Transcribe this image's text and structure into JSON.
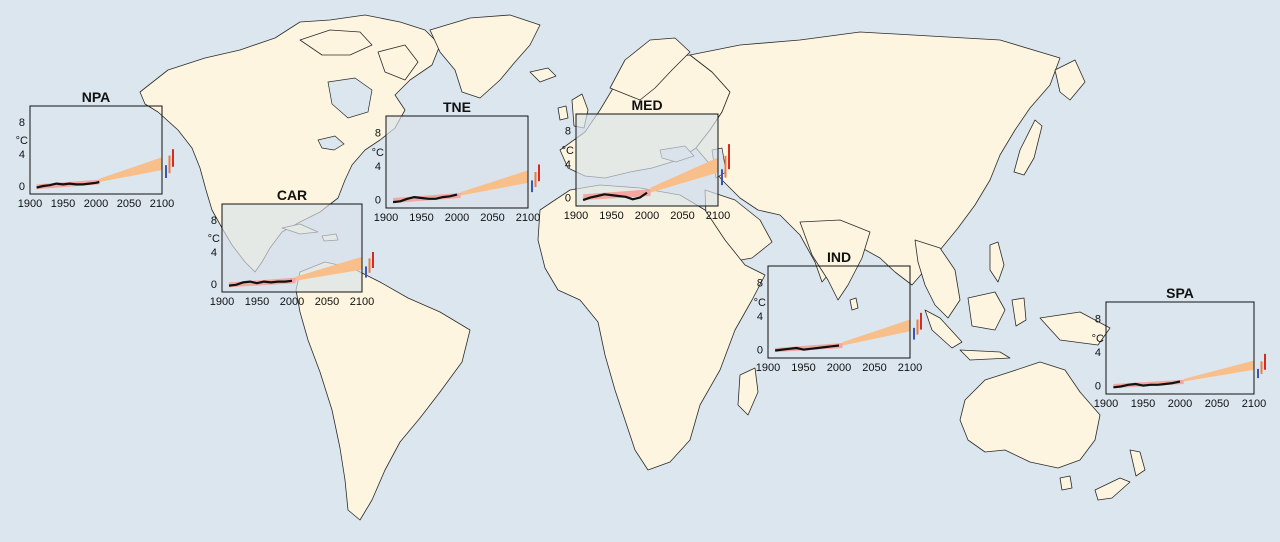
{
  "colors": {
    "ocean": "#dce6ef",
    "land": "#fdf5df",
    "coastline": "#2b2b2b",
    "observed_line": "#111111",
    "historical_model_band": "#f3a7a0",
    "projection_band": "#f8bf8a",
    "range_bar_low": "#3a57b4",
    "range_bar_mid": "#f07a3a",
    "range_bar_high": "#d62b1f"
  },
  "chart_data": [
    {
      "type": "line",
      "title": "NPA",
      "ylabel": "°C",
      "xlim": [
        1900,
        2100
      ],
      "ylim": [
        -1,
        10
      ],
      "x_ticks": [
        "1900",
        "1950",
        "2000",
        "2050",
        "2100"
      ],
      "y_ticks": [
        "0",
        "4",
        "8"
      ],
      "observed": {
        "x": [
          1910,
          1920,
          1930,
          1940,
          1950,
          1960,
          1970,
          1980,
          1990,
          2000,
          2005
        ],
        "y": [
          -0.2,
          0.0,
          0.1,
          0.3,
          0.2,
          0.3,
          0.2,
          0.2,
          0.3,
          0.4,
          0.5
        ]
      },
      "historical_band": {
        "x": [
          1910,
          2005
        ],
        "low": [
          -0.4,
          0.2
        ],
        "high": [
          0.2,
          0.8
        ]
      },
      "projection_band": {
        "x": [
          2005,
          2100
        ],
        "low": [
          0.5,
          2.0
        ],
        "high": [
          0.9,
          3.6
        ]
      },
      "range_bars": [
        {
          "color": "#3a57b4",
          "low": 1.0,
          "high": 2.6
        },
        {
          "color": "#f07a3a",
          "low": 1.6,
          "high": 3.8
        },
        {
          "color": "#d62b1f",
          "low": 2.4,
          "high": 4.6
        }
      ]
    },
    {
      "type": "line",
      "title": "CAR",
      "ylabel": "°C",
      "xlim": [
        1900,
        2100
      ],
      "ylim": [
        -1,
        10
      ],
      "x_ticks": [
        "1900",
        "1950",
        "2000",
        "2050",
        "2100"
      ],
      "y_ticks": [
        "0",
        "4",
        "8"
      ],
      "observed": {
        "x": [
          1910,
          1920,
          1930,
          1940,
          1950,
          1960,
          1970,
          1980,
          1990,
          2000
        ],
        "y": [
          -0.2,
          -0.1,
          0.2,
          0.3,
          0.1,
          0.3,
          0.2,
          0.3,
          0.3,
          0.4
        ]
      },
      "historical_band": {
        "x": [
          1910,
          2005
        ],
        "low": [
          -0.4,
          0.1
        ],
        "high": [
          0.2,
          0.8
        ]
      },
      "projection_band": {
        "x": [
          2005,
          2100
        ],
        "low": [
          0.4,
          1.8
        ],
        "high": [
          0.9,
          3.4
        ]
      },
      "range_bars": [
        {
          "color": "#3a57b4",
          "low": 0.8,
          "high": 2.2
        },
        {
          "color": "#f07a3a",
          "low": 1.4,
          "high": 3.2
        },
        {
          "color": "#d62b1f",
          "low": 2.0,
          "high": 4.0
        }
      ]
    },
    {
      "type": "line",
      "title": "TNE",
      "ylabel": "°C",
      "xlim": [
        1900,
        2100
      ],
      "ylim": [
        -1,
        10
      ],
      "x_ticks": [
        "1900",
        "1950",
        "2000",
        "2050",
        "2100"
      ],
      "y_ticks": [
        "0",
        "4",
        "8"
      ],
      "observed": {
        "x": [
          1910,
          1920,
          1930,
          1940,
          1950,
          1960,
          1970,
          1980,
          1990,
          2000
        ],
        "y": [
          -0.3,
          -0.2,
          0.1,
          0.3,
          0.2,
          0.1,
          0.1,
          0.3,
          0.4,
          0.6
        ]
      },
      "historical_band": {
        "x": [
          1910,
          2005
        ],
        "low": [
          -0.4,
          0.2
        ],
        "high": [
          0.2,
          0.8
        ]
      },
      "projection_band": {
        "x": [
          2005,
          2100
        ],
        "low": [
          0.5,
          2.0
        ],
        "high": [
          0.9,
          3.5
        ]
      },
      "range_bars": [
        {
          "color": "#3a57b4",
          "low": 0.9,
          "high": 2.3
        },
        {
          "color": "#f07a3a",
          "low": 1.5,
          "high": 3.3
        },
        {
          "color": "#d62b1f",
          "low": 2.2,
          "high": 4.2
        }
      ]
    },
    {
      "type": "line",
      "title": "MED",
      "ylabel": "°C",
      "xlim": [
        1900,
        2100
      ],
      "ylim": [
        -1,
        10
      ],
      "x_ticks": [
        "1900",
        "1950",
        "2000",
        "2050",
        "2100"
      ],
      "y_ticks": [
        "0",
        "4",
        "8"
      ],
      "observed": {
        "x": [
          1910,
          1920,
          1930,
          1940,
          1950,
          1960,
          1970,
          1980,
          1990,
          2000
        ],
        "y": [
          -0.3,
          0.0,
          0.2,
          0.4,
          0.3,
          0.2,
          0.1,
          -0.2,
          0.0,
          0.6
        ]
      },
      "historical_band": {
        "x": [
          1910,
          2005
        ],
        "low": [
          -0.3,
          0.2
        ],
        "high": [
          0.4,
          1.0
        ]
      },
      "projection_band": {
        "x": [
          2005,
          2100
        ],
        "low": [
          0.6,
          3.0
        ],
        "high": [
          1.2,
          4.8
        ]
      },
      "range_bars": [
        {
          "color": "#3a57b4",
          "low": 1.5,
          "high": 3.4
        },
        {
          "color": "#f07a3a",
          "low": 2.4,
          "high": 5.0
        },
        {
          "color": "#d62b1f",
          "low": 3.4,
          "high": 6.4
        }
      ]
    },
    {
      "type": "line",
      "title": "IND",
      "ylabel": "°C",
      "xlim": [
        1900,
        2100
      ],
      "ylim": [
        -1,
        10
      ],
      "x_ticks": [
        "1900",
        "1950",
        "2000",
        "2050",
        "2100"
      ],
      "y_ticks": [
        "0",
        "4",
        "8"
      ],
      "observed": {
        "x": [
          1910,
          1920,
          1930,
          1940,
          1950,
          1960,
          1970,
          1980,
          1990,
          2000
        ],
        "y": [
          -0.1,
          0.0,
          0.1,
          0.2,
          0.0,
          0.1,
          0.2,
          0.3,
          0.4,
          0.5
        ]
      },
      "historical_band": {
        "x": [
          1910,
          2005
        ],
        "low": [
          -0.3,
          0.2
        ],
        "high": [
          0.2,
          0.8
        ]
      },
      "projection_band": {
        "x": [
          2005,
          2100
        ],
        "low": [
          0.5,
          2.2
        ],
        "high": [
          0.9,
          3.6
        ]
      },
      "range_bars": [
        {
          "color": "#3a57b4",
          "low": 1.2,
          "high": 2.6
        },
        {
          "color": "#f07a3a",
          "low": 1.8,
          "high": 3.6
        },
        {
          "color": "#d62b1f",
          "low": 2.4,
          "high": 4.4
        }
      ]
    },
    {
      "type": "line",
      "title": "SPA",
      "ylabel": "°C",
      "xlim": [
        1900,
        2100
      ],
      "ylim": [
        -1,
        10
      ],
      "x_ticks": [
        "1900",
        "1950",
        "2000",
        "2050",
        "2100"
      ],
      "y_ticks": [
        "0",
        "4",
        "8"
      ],
      "observed": {
        "x": [
          1910,
          1920,
          1930,
          1940,
          1950,
          1960,
          1970,
          1980,
          1990,
          2000
        ],
        "y": [
          -0.2,
          -0.1,
          0.1,
          0.2,
          0.0,
          0.1,
          0.1,
          0.2,
          0.3,
          0.5
        ]
      },
      "historical_band": {
        "x": [
          1910,
          2005
        ],
        "low": [
          -0.3,
          0.2
        ],
        "high": [
          0.2,
          0.7
        ]
      },
      "projection_band": {
        "x": [
          2005,
          2100
        ],
        "low": [
          0.5,
          1.9
        ],
        "high": [
          0.8,
          3.0
        ]
      },
      "range_bars": [
        {
          "color": "#3a57b4",
          "low": 0.9,
          "high": 2.0
        },
        {
          "color": "#f07a3a",
          "low": 1.4,
          "high": 2.9
        },
        {
          "color": "#d62b1f",
          "low": 1.9,
          "high": 3.8
        }
      ]
    }
  ]
}
